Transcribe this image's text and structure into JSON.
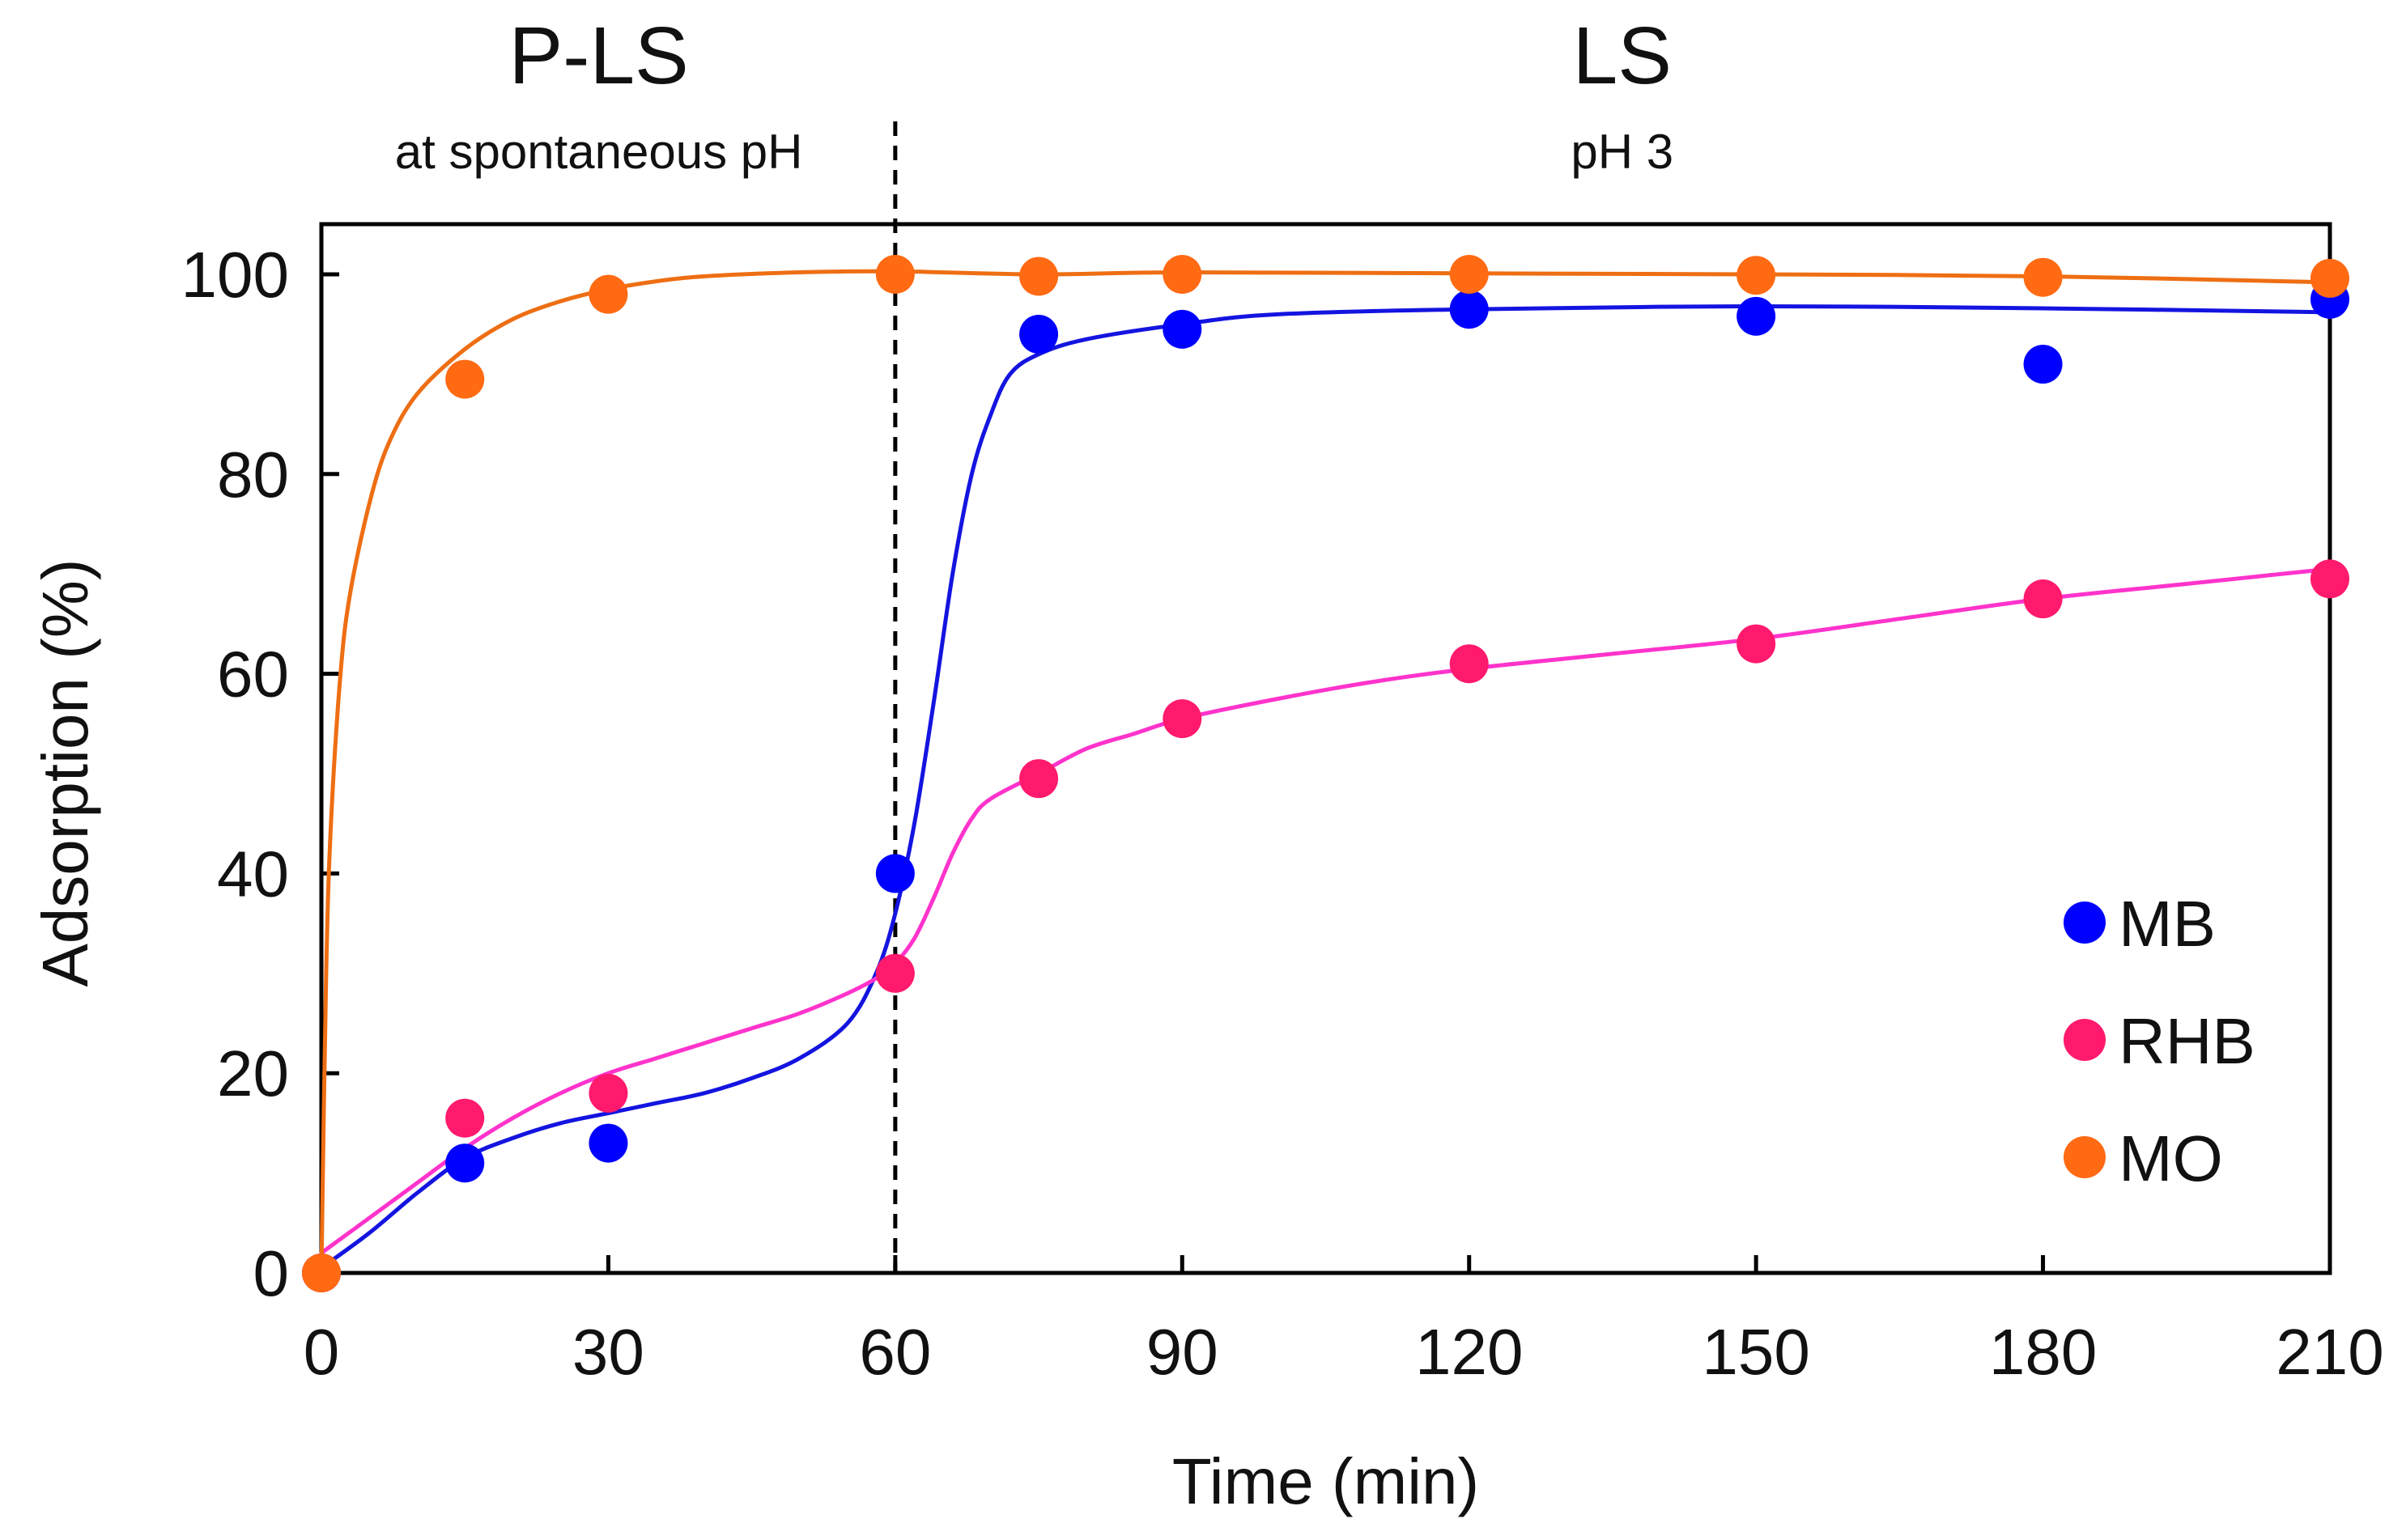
{
  "chart_data": {
    "type": "scatter",
    "xlabel": "Time (min)",
    "ylabel": "Adsorption  (%)",
    "xlim": [
      0,
      210
    ],
    "ylim": [
      0,
      105
    ],
    "xticks": [
      "0",
      "30",
      "60",
      "90",
      "120",
      "150",
      "180",
      "210"
    ],
    "yticks": [
      "0",
      "20",
      "40",
      "60",
      "80",
      "100"
    ],
    "grid": false,
    "legend_position": "bottom-right",
    "divider_x": 60,
    "phases": [
      {
        "title": "P-LS",
        "subtitle": "at spontaneous pH",
        "center_x": 29
      },
      {
        "title": "LS",
        "subtitle": "pH 3",
        "center_x": 136
      }
    ],
    "series": [
      {
        "name": "MB",
        "color": "#0000ff",
        "line_color": "#1414e0",
        "x": [
          0,
          15,
          30,
          60,
          75,
          90,
          120,
          150,
          180,
          210
        ],
        "y": [
          0,
          11,
          13,
          40,
          94,
          94.5,
          96.5,
          95.8,
          91,
          97.5
        ],
        "curve": [
          [
            0,
            0.5
          ],
          [
            5,
            4
          ],
          [
            10,
            8
          ],
          [
            15,
            11.5
          ],
          [
            20,
            13.5
          ],
          [
            25,
            15
          ],
          [
            30,
            16
          ],
          [
            35,
            17
          ],
          [
            40,
            18
          ],
          [
            45,
            19.5
          ],
          [
            50,
            21.5
          ],
          [
            55,
            25
          ],
          [
            58,
            30
          ],
          [
            60,
            36
          ],
          [
            62,
            45
          ],
          [
            64,
            57
          ],
          [
            66,
            70
          ],
          [
            68,
            80
          ],
          [
            70,
            86
          ],
          [
            72,
            90
          ],
          [
            75,
            92
          ],
          [
            80,
            93.5
          ],
          [
            90,
            95
          ],
          [
            100,
            96
          ],
          [
            120,
            96.5
          ],
          [
            150,
            96.8
          ],
          [
            180,
            96.6
          ],
          [
            210,
            96.2
          ]
        ]
      },
      {
        "name": "RHB",
        "color": "#ff1a6e",
        "line_color": "#ff33cc",
        "x": [
          0,
          15,
          30,
          60,
          75,
          90,
          120,
          150,
          180,
          210
        ],
        "y": [
          0,
          15.5,
          18,
          30,
          49.5,
          55.5,
          61,
          63,
          67.5,
          69.5
        ],
        "curve": [
          [
            0,
            2
          ],
          [
            5,
            5.5
          ],
          [
            10,
            9
          ],
          [
            15,
            12.5
          ],
          [
            20,
            15.5
          ],
          [
            25,
            18
          ],
          [
            30,
            20
          ],
          [
            35,
            21.5
          ],
          [
            40,
            23
          ],
          [
            45,
            24.5
          ],
          [
            50,
            26
          ],
          [
            55,
            28
          ],
          [
            58,
            29.5
          ],
          [
            60,
            31
          ],
          [
            62,
            33.5
          ],
          [
            64,
            37.5
          ],
          [
            66,
            42
          ],
          [
            68,
            45.5
          ],
          [
            70,
            47.5
          ],
          [
            75,
            50
          ],
          [
            80,
            52.5
          ],
          [
            85,
            54
          ],
          [
            90,
            55.5
          ],
          [
            100,
            57.5
          ],
          [
            110,
            59.2
          ],
          [
            120,
            60.5
          ],
          [
            135,
            62
          ],
          [
            150,
            63.5
          ],
          [
            165,
            65.5
          ],
          [
            180,
            67.5
          ],
          [
            195,
            69
          ],
          [
            210,
            70.5
          ]
        ]
      },
      {
        "name": "MO",
        "color": "#ff6a13",
        "line_color": "#ee6e13",
        "x": [
          0,
          15,
          30,
          60,
          75,
          90,
          120,
          150,
          180,
          210
        ],
        "y": [
          0,
          89.5,
          98,
          100,
          99.8,
          100,
          100,
          99.9,
          99.7,
          99.6
        ],
        "curve": [
          [
            0,
            0
          ],
          [
            0.5,
            30
          ],
          [
            1,
            45
          ],
          [
            2,
            60
          ],
          [
            3,
            68
          ],
          [
            5,
            77
          ],
          [
            7,
            83
          ],
          [
            10,
            88
          ],
          [
            15,
            92.5
          ],
          [
            20,
            95.5
          ],
          [
            25,
            97.3
          ],
          [
            30,
            98.5
          ],
          [
            35,
            99.3
          ],
          [
            40,
            99.8
          ],
          [
            50,
            100.2
          ],
          [
            60,
            100.3
          ],
          [
            75,
            100
          ],
          [
            90,
            100.2
          ],
          [
            120,
            100.1
          ],
          [
            150,
            100
          ],
          [
            180,
            99.8
          ],
          [
            210,
            99.2
          ]
        ]
      }
    ]
  }
}
